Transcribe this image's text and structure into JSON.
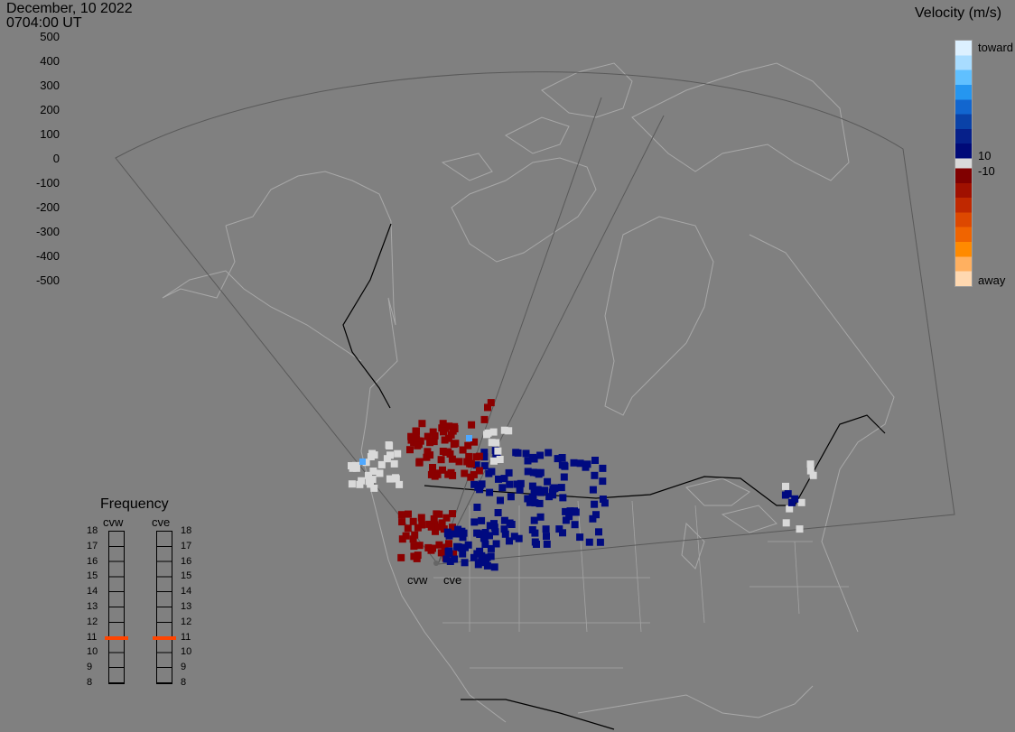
{
  "header": {
    "date": "December, 10 2022",
    "time": "0704:00 UT"
  },
  "colorbar": {
    "title": "Velocity (m/s)",
    "ticks": [
      "500",
      "400",
      "300",
      "200",
      "100",
      "0",
      "-100",
      "-200",
      "-300",
      "-400",
      "-500"
    ],
    "toward_label": "toward",
    "away_label": "away",
    "pos_threshold_label": "10",
    "neg_threshold_label": "-10",
    "toward_colors": [
      "#dcf0ff",
      "#a8dcff",
      "#60c0ff",
      "#2596f0",
      "#1266cf",
      "#0a42a8",
      "#06208a",
      "#000a78"
    ],
    "away_colors": [
      "#800000",
      "#a01000",
      "#c02800",
      "#dd4800",
      "#f06400",
      "#ff8a00",
      "#ffb060",
      "#ffd8b0"
    ],
    "ground_scatter_color": "#d9d9d9"
  },
  "frequency": {
    "title": "Frequency",
    "stations": [
      {
        "name": "cvw",
        "mhz": 10.9,
        "marker_color": "#ff4400"
      },
      {
        "name": "cve",
        "mhz": 10.9,
        "marker_color": "#ff4400"
      }
    ],
    "scale": [
      "18",
      "17",
      "16",
      "15",
      "14",
      "13",
      "12",
      "11",
      "10",
      "9",
      "8"
    ]
  },
  "radars": {
    "labels": [
      "cvw",
      "cve"
    ]
  }
}
